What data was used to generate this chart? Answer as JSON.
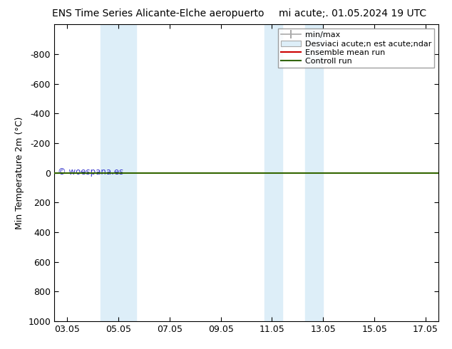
{
  "title_left": "ENS Time Series Alicante-Elche aeropuerto",
  "title_right": "mi acute;. 01.05.2024 19 UTC",
  "ylabel": "Min Temperature 2m (°C)",
  "ylim_bottom": 1000,
  "ylim_top": -1000,
  "yticks": [
    -800,
    -600,
    -400,
    -200,
    0,
    200,
    400,
    600,
    800,
    1000
  ],
  "xtick_labels": [
    "03.05",
    "05.05",
    "07.05",
    "09.05",
    "11.05",
    "13.05",
    "15.05",
    "17.05"
  ],
  "xtick_positions": [
    3,
    5,
    7,
    9,
    11,
    13,
    15,
    17
  ],
  "xlim_left": 2.5,
  "xlim_right": 17.5,
  "shaded_bands": [
    {
      "x_start": 4.3,
      "x_end": 5.0
    },
    {
      "x_start": 5.0,
      "x_end": 5.7
    },
    {
      "x_start": 10.7,
      "x_end": 11.4
    },
    {
      "x_start": 12.3,
      "x_end": 13.0
    }
  ],
  "band_color": "#ddeef8",
  "hline_y": 0,
  "green_line_color": "#336600",
  "red_line_color": "#cc0000",
  "watermark_text": "© woespana.es",
  "watermark_color": "#3333cc",
  "legend_label_minmax": "min/max",
  "legend_label_std": "Desviaci acute;n est acute;ndar",
  "legend_label_ens": "Ensemble mean run",
  "legend_label_ctrl": "Controll run",
  "legend_color_minmax": "#aaaaaa",
  "legend_color_std": "#ddeef8",
  "legend_color_ens": "#cc0000",
  "legend_color_ctrl": "#336600",
  "background_color": "#ffffff",
  "font_size_title": 10,
  "font_size_axis": 9,
  "font_size_legend": 8
}
